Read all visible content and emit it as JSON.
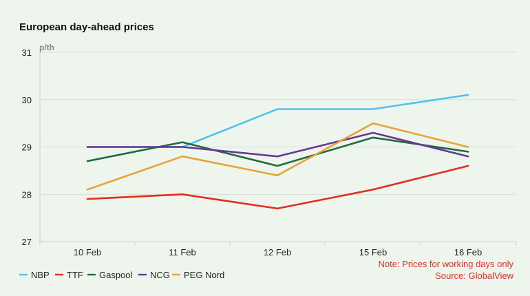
{
  "chart_data": {
    "type": "line",
    "title": "European day-ahead prices",
    "unit_label": "p/th",
    "categories": [
      "10 Feb",
      "11 Feb",
      "12 Feb",
      "15 Feb",
      "16 Feb"
    ],
    "ylim": [
      27,
      31
    ],
    "yticks": [
      "31",
      "30",
      "29",
      "28",
      "27"
    ],
    "grid": true,
    "legend_placement": "bottom-left",
    "series": [
      {
        "name": "NBP",
        "color": "#4dc3ee",
        "values": [
          29.0,
          29.0,
          29.8,
          29.8,
          30.1
        ]
      },
      {
        "name": "TTF",
        "color": "#e32d1e",
        "values": [
          27.9,
          28.0,
          27.7,
          28.1,
          28.6
        ]
      },
      {
        "name": "Gaspool",
        "color": "#1e6b3c",
        "values": [
          28.7,
          29.1,
          28.6,
          29.2,
          28.9
        ]
      },
      {
        "name": "NCG",
        "color": "#6a3595",
        "values": [
          29.0,
          29.0,
          28.8,
          29.3,
          28.8
        ]
      },
      {
        "name": "PEG Nord",
        "color": "#e8a23a",
        "values": [
          28.1,
          28.8,
          28.4,
          29.5,
          29.0
        ]
      }
    ],
    "note": "Note: Prices for working days only",
    "source": "Source: GlobalView"
  }
}
